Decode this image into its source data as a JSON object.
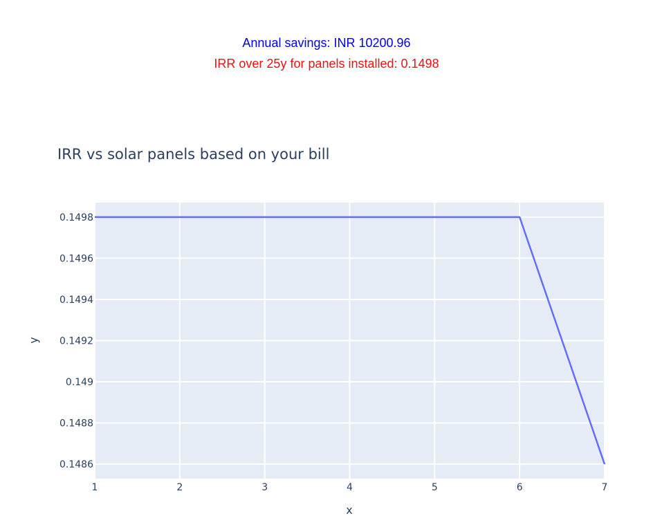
{
  "header": {
    "savings_text": "Annual savings: INR 10200.96",
    "savings_color": "#0000ee",
    "irr_text": "IRR over 25y for panels installed: 0.1498",
    "irr_color": "#ee1111"
  },
  "chart_data": {
    "type": "line",
    "title": "IRR vs solar panels based on your bill",
    "xlabel": "x",
    "ylabel": "y",
    "xlim": [
      1,
      7
    ],
    "ylim": [
      0.14853,
      0.14987
    ],
    "x_ticks": [
      1,
      2,
      3,
      4,
      5,
      6,
      7
    ],
    "y_ticks": [
      0.1486,
      0.1488,
      0.149,
      0.1492,
      0.1494,
      0.1496,
      0.1498
    ],
    "y_tick_labels": [
      "0.1486",
      "0.1488",
      "0.149",
      "0.1492",
      "0.1494",
      "0.1496",
      "0.1498"
    ],
    "grid": true,
    "series": [
      {
        "x": [
          1,
          2,
          3,
          4,
          5,
          6,
          7
        ],
        "y": [
          0.1498,
          0.1498,
          0.1498,
          0.1498,
          0.1498,
          0.1498,
          0.1486
        ],
        "color": "#636efa"
      }
    ],
    "plot_bg": "#e5ecf6",
    "text_color": "#2a3f5f"
  }
}
